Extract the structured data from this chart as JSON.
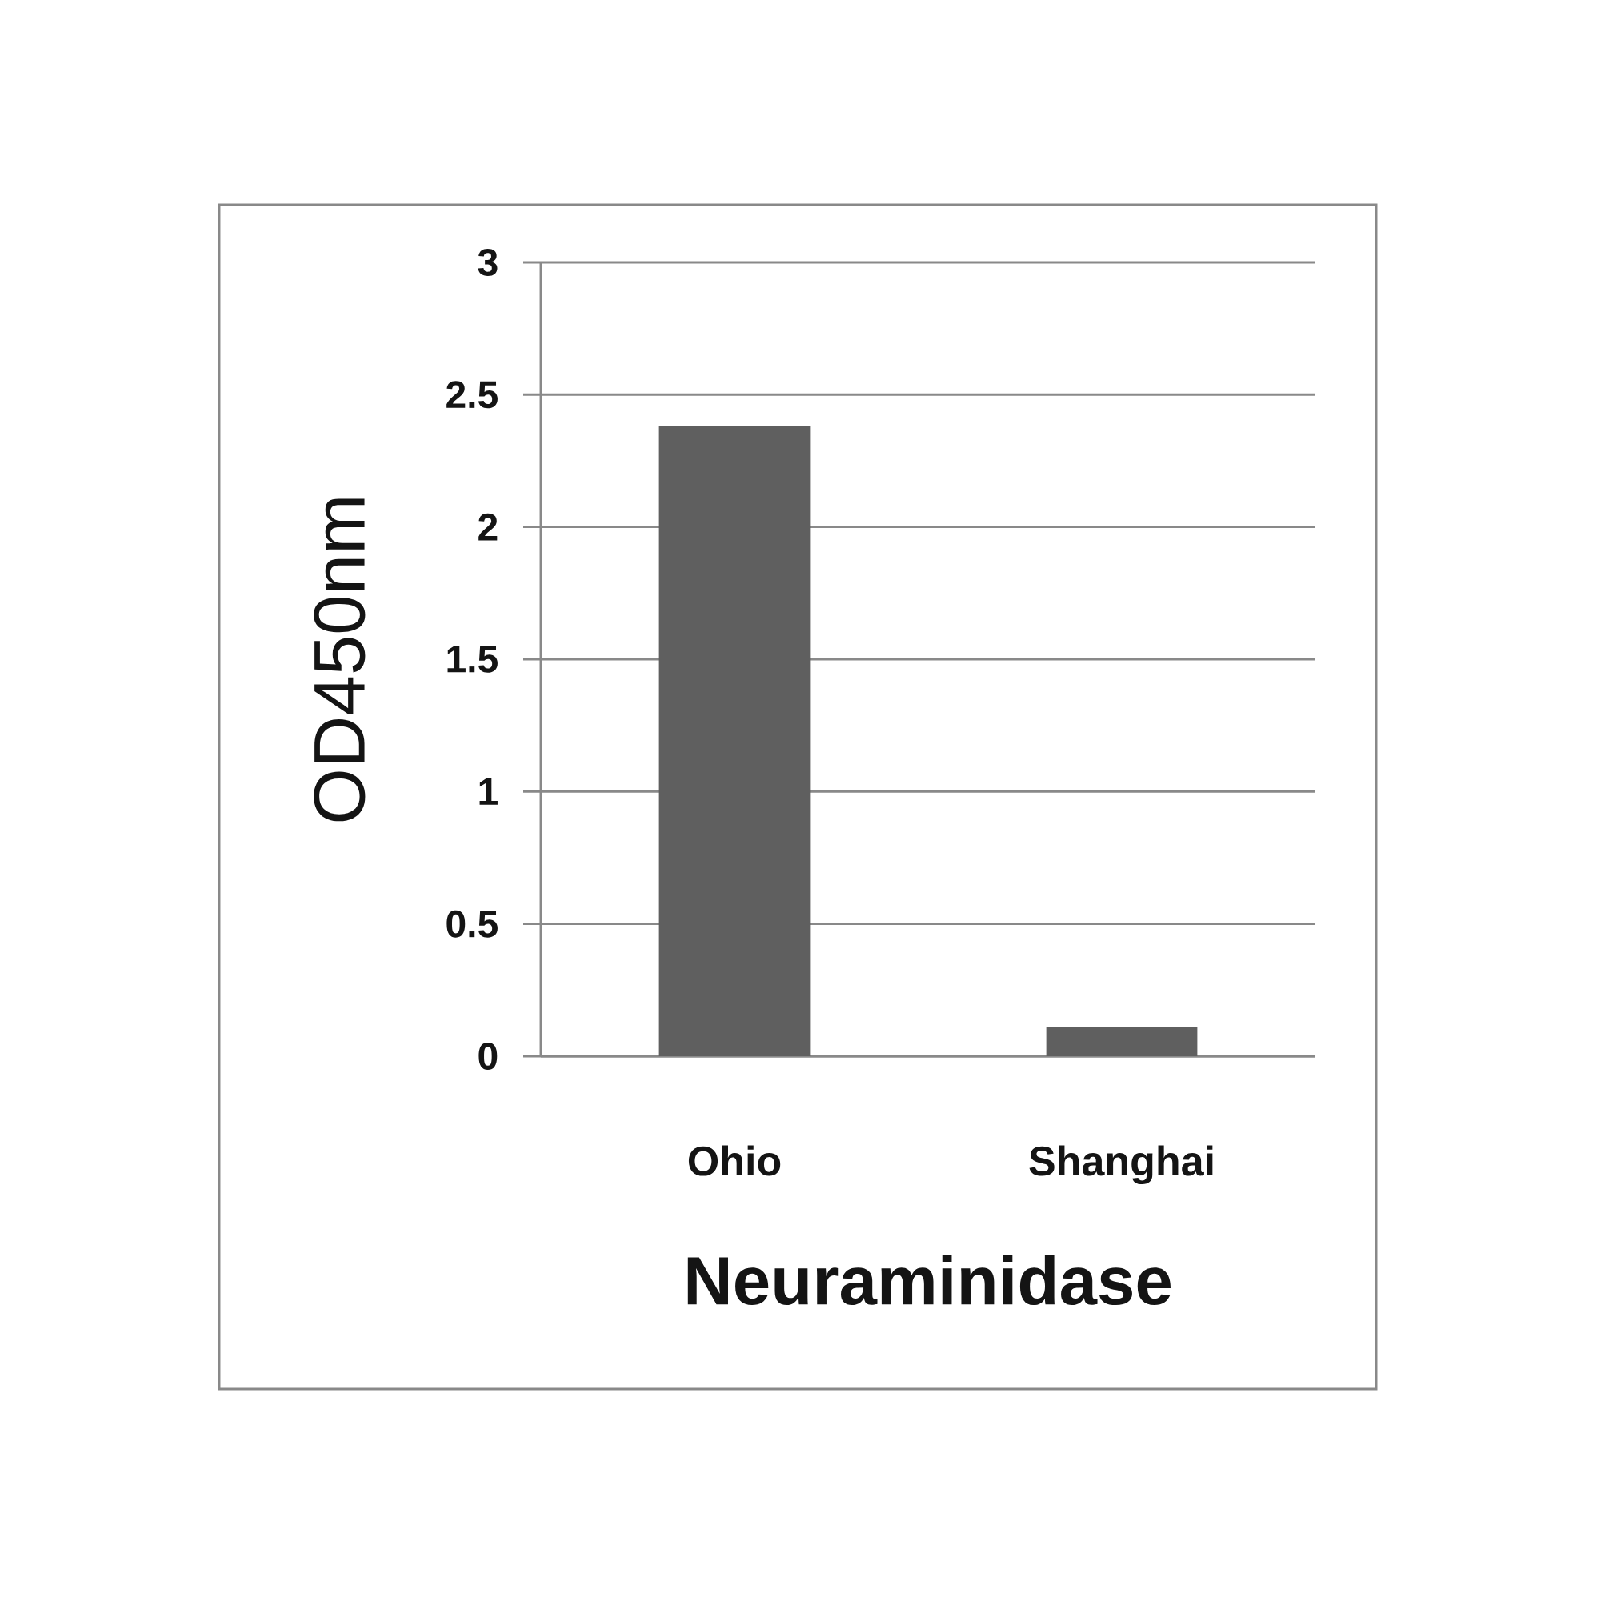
{
  "chart_data": {
    "type": "bar",
    "xlabel": "Neuraminidase",
    "ylabel": "OD450nm",
    "categories": [
      "Ohio",
      "Shanghai"
    ],
    "values": [
      2.38,
      0.11
    ],
    "color": "#5f5f5f",
    "ylim": [
      0,
      3
    ],
    "yticks": [
      0,
      0.5,
      1,
      1.5,
      2,
      2.5,
      3
    ],
    "grid": "y"
  }
}
